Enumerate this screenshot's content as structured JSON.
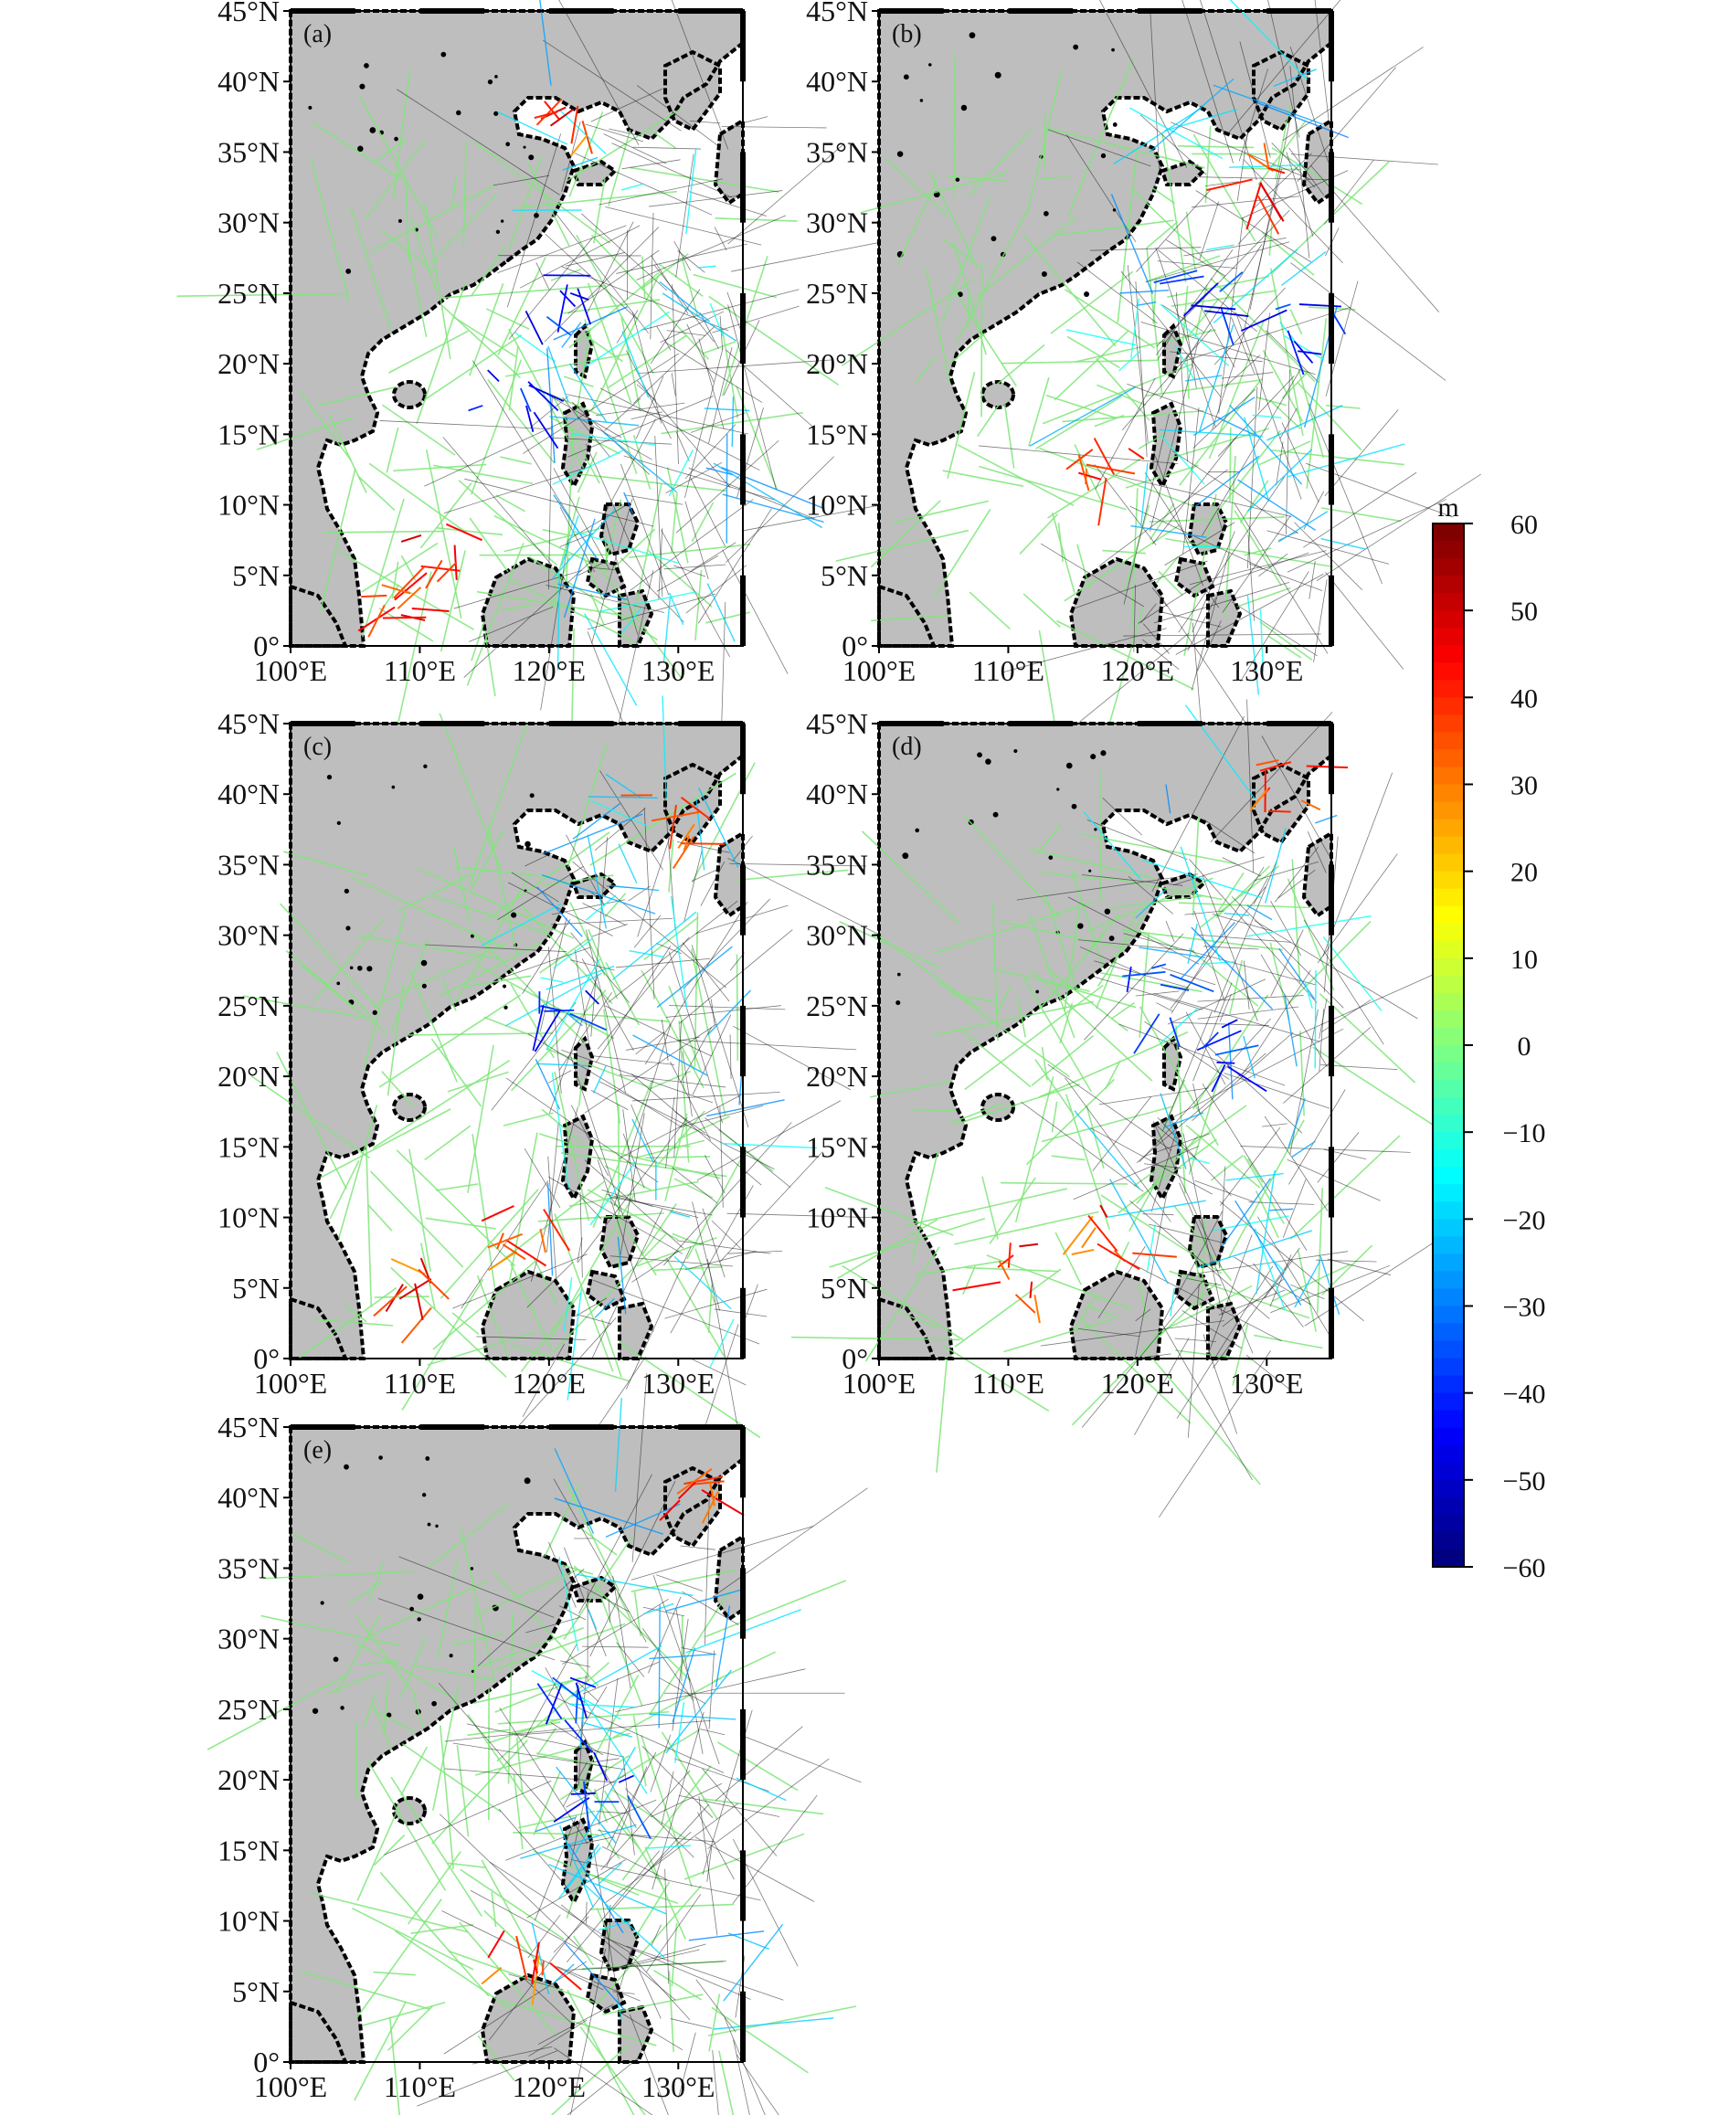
{
  "figure": {
    "panels": [
      {
        "tag": "(a)",
        "hot": [
          [
            0.32,
            0.85
          ],
          [
            0.26,
            0.92
          ],
          [
            0.62,
            0.17
          ]
        ],
        "cold": [
          [
            0.58,
            0.45
          ],
          [
            0.48,
            0.6
          ]
        ]
      },
      {
        "tag": "(b)",
        "hot": [
          [
            0.5,
            0.7
          ],
          [
            0.85,
            0.25
          ]
        ],
        "cold": [
          [
            0.75,
            0.45
          ],
          [
            0.95,
            0.5
          ]
        ]
      },
      {
        "tag": "(c)",
        "hot": [
          [
            0.52,
            0.8
          ],
          [
            0.28,
            0.88
          ],
          [
            0.85,
            0.15
          ]
        ],
        "cold": [
          [
            0.6,
            0.42
          ]
        ]
      },
      {
        "tag": "(d)",
        "hot": [
          [
            0.52,
            0.8
          ],
          [
            0.3,
            0.86
          ],
          [
            0.9,
            0.1
          ]
        ],
        "cold": [
          [
            0.78,
            0.5
          ],
          [
            0.6,
            0.42
          ]
        ]
      },
      {
        "tag": "(e)",
        "hot": [
          [
            0.52,
            0.82
          ],
          [
            0.9,
            0.1
          ]
        ],
        "cold": [
          [
            0.7,
            0.55
          ],
          [
            0.58,
            0.42
          ]
        ]
      }
    ],
    "lat_labels": [
      "0°",
      "5°N",
      "10°N",
      "15°N",
      "20°N",
      "25°N",
      "30°N",
      "35°N",
      "40°N",
      "45°N"
    ],
    "lon_labels": [
      "100°E",
      "110°E",
      "120°E",
      "130°E"
    ],
    "lon_range": [
      100,
      135
    ],
    "lat_range": [
      0,
      45
    ]
  },
  "colorbar": {
    "unit": "m",
    "min": -60,
    "max": 60,
    "ticks": [
      "60",
      "50",
      "40",
      "30",
      "20",
      "10",
      "0",
      "−10",
      "−20",
      "−30",
      "−40",
      "−50",
      "−60"
    ],
    "colormap": "jet",
    "colors": {
      "land": "#bebebe",
      "ocean": "#ffffff",
      "coast": "#000000",
      "track_dense": "#80e67a"
    }
  }
}
